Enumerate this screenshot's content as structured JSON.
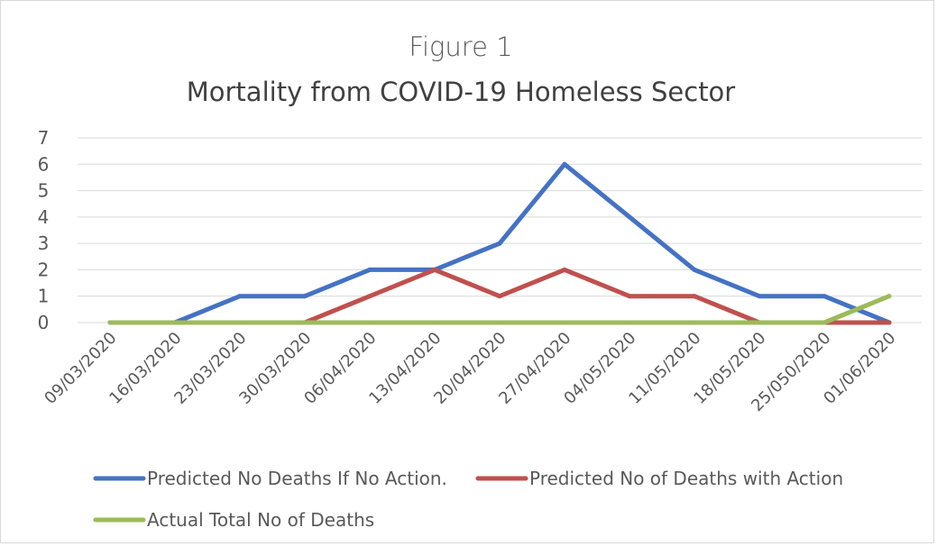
{
  "chart_data": {
    "type": "line",
    "title": "Figure 1",
    "subtitle": "Mortality from COVID-19 Homeless Sector",
    "categories": [
      "09/03/2020",
      "16/03/2020",
      "23/03/2020",
      "30/03/2020",
      "06/04/2020",
      "13/04/2020",
      "20/04/2020",
      "27/04/2020",
      "04/05/2020",
      "11/05/2020",
      "18/05/2020",
      "25/050/2020",
      "01/06/2020"
    ],
    "yticks": [
      "0",
      "1",
      "2",
      "3",
      "4",
      "5",
      "6",
      "7"
    ],
    "ylim": [
      0,
      7
    ],
    "grid": true,
    "legend_position": "bottom",
    "series": [
      {
        "name": "Predicted No Deaths If No Action.",
        "color": "#4472c4",
        "values": [
          0,
          0,
          1,
          1,
          2,
          2,
          3,
          6,
          4,
          2,
          1,
          1,
          0
        ]
      },
      {
        "name": "Predicted No of Deaths with Action",
        "color": "#c0504d",
        "values": [
          0,
          0,
          0,
          0,
          1,
          2,
          1,
          2,
          1,
          1,
          0,
          0,
          0
        ]
      },
      {
        "name": "Actual Total No of Deaths",
        "color": "#9bbb59",
        "values": [
          0,
          0,
          0,
          0,
          0,
          0,
          0,
          0,
          0,
          0,
          0,
          0,
          1
        ]
      }
    ]
  }
}
